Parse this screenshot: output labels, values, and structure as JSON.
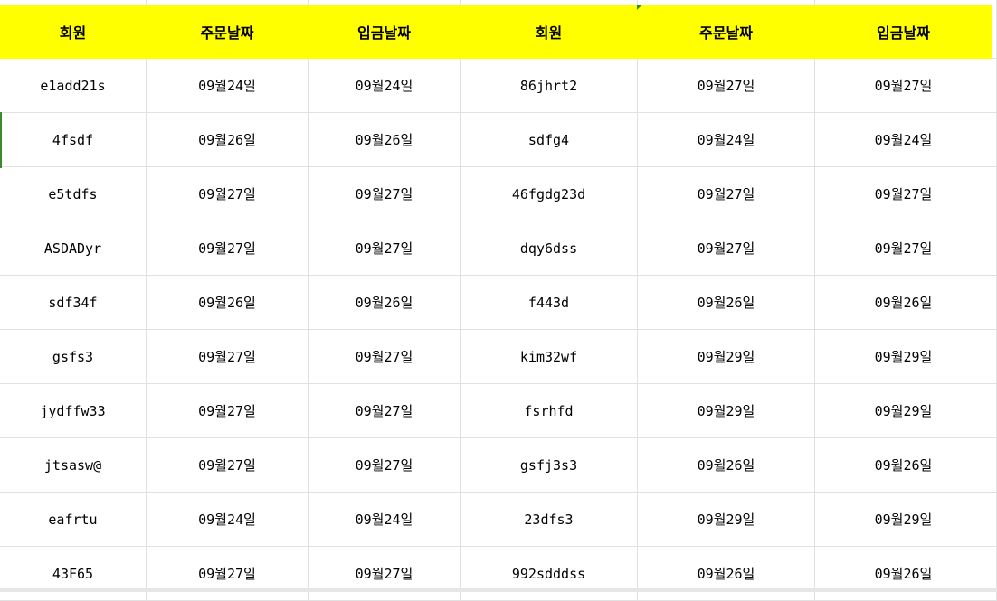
{
  "headers": [
    "회원",
    "주문날짜",
    "입금날짜",
    "회원",
    "주문날짜",
    "입금날짜"
  ],
  "rows": [
    [
      "e1add21s",
      "09월24일",
      "09월24일",
      "86jhrt2",
      "09월27일",
      "09월27일"
    ],
    [
      "4fsdf",
      "09월26일",
      "09월26일",
      "sdfg4",
      "09월24일",
      "09월24일"
    ],
    [
      "e5tdfs",
      "09월27일",
      "09월27일",
      "46fgdg23d",
      "09월27일",
      "09월27일"
    ],
    [
      "ASDADyr",
      "09월27일",
      "09월27일",
      "dqy6dss",
      "09월27일",
      "09월27일"
    ],
    [
      "sdf34f",
      "09월26일",
      "09월26일",
      "f443d",
      "09월26일",
      "09월26일"
    ],
    [
      "gsfs3",
      "09월27일",
      "09월27일",
      "kim32wf",
      "09월29일",
      "09월29일"
    ],
    [
      "jydffw33",
      "09월27일",
      "09월27일",
      "fsrhfd",
      "09월29일",
      "09월29일"
    ],
    [
      "jtsasw@",
      "09월27일",
      "09월27일",
      "gsfj3s3",
      "09월26일",
      "09월26일"
    ],
    [
      "eafrtu",
      "09월24일",
      "09월24일",
      "23dfs3",
      "09월29일",
      "09월29일"
    ],
    [
      "43F65",
      "09월27일",
      "09월27일",
      "992sdddss",
      "09월26일",
      "09월26일"
    ]
  ],
  "colors": {
    "header_fill": "#ffff00",
    "selection": "#3a8a2e",
    "gridline": "#e1e1e1"
  }
}
